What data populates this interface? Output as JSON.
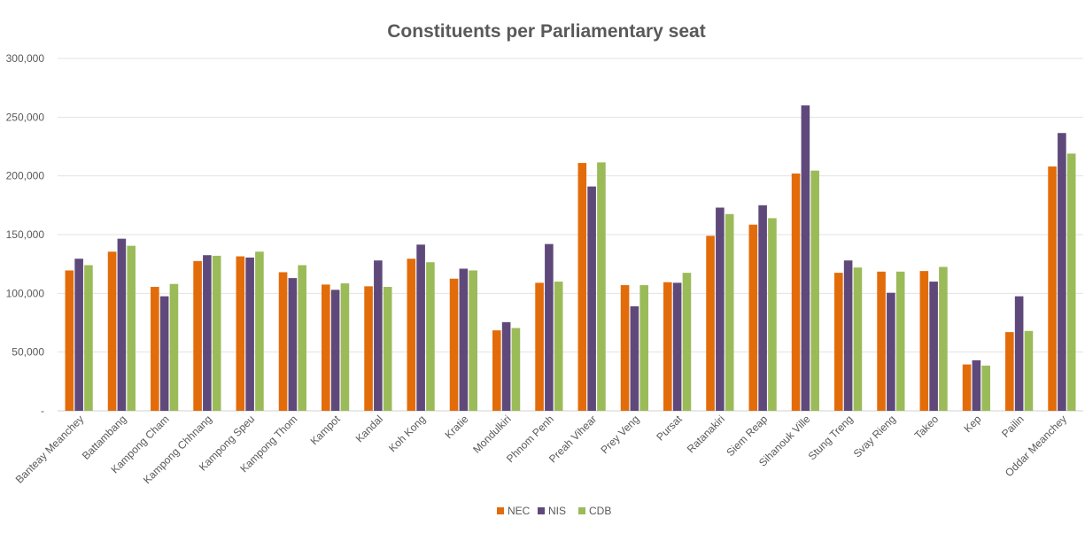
{
  "chart_data": {
    "type": "bar",
    "title": "Constituents per Parliamentary seat",
    "xlabel": "",
    "ylabel": "",
    "ylim": [
      0,
      300000
    ],
    "yticks": [
      0,
      50000,
      100000,
      150000,
      200000,
      250000,
      300000
    ],
    "ytick_labels": [
      "-",
      "50,000",
      "100,000",
      "150,000",
      "200,000",
      "250,000",
      "300,000"
    ],
    "grid": true,
    "legend_position": "bottom-center",
    "categories": [
      "Banteay Meanchey",
      "Battambang",
      "Kampong Cham",
      "Kampong Chhnang",
      "Kampong Speu",
      "Kampong Thom",
      "Kampot",
      "Kandal",
      "Koh Kong",
      "Kratie",
      "Mondulkiri",
      "Phnom Penh",
      "Preah Vihear",
      "Prey Veng",
      "Pursat",
      "Ratanakiri",
      "Siem Reap",
      "Sihanouk Ville",
      "Stung Treng",
      "Svay Rieng",
      "Takeo",
      "Kep",
      "Pailin",
      "Oddar Meanchey"
    ],
    "series": [
      {
        "name": "NEC",
        "color": "#E36C0A",
        "values": [
          119500,
          135500,
          105500,
          127500,
          131500,
          118000,
          107500,
          106000,
          129500,
          112500,
          68500,
          109000,
          211000,
          107000,
          109500,
          149000,
          158500,
          202000,
          117500,
          118500,
          119000,
          39500,
          67000,
          208000
        ]
      },
      {
        "name": "NIS",
        "color": "#5F497A",
        "values": [
          129500,
          146500,
          97500,
          132500,
          130500,
          113000,
          103000,
          128000,
          141500,
          121000,
          75500,
          142000,
          191000,
          89000,
          109000,
          173000,
          175000,
          260000,
          128000,
          100500,
          110000,
          43000,
          97500,
          236500
        ]
      },
      {
        "name": "CDB",
        "color": "#9BBB59",
        "values": [
          124000,
          140500,
          108000,
          132000,
          135500,
          124000,
          108500,
          105500,
          126500,
          119500,
          70500,
          110000,
          211500,
          107000,
          117500,
          167500,
          164000,
          204500,
          122000,
          118500,
          122500,
          38500,
          68000,
          219000
        ]
      }
    ]
  }
}
